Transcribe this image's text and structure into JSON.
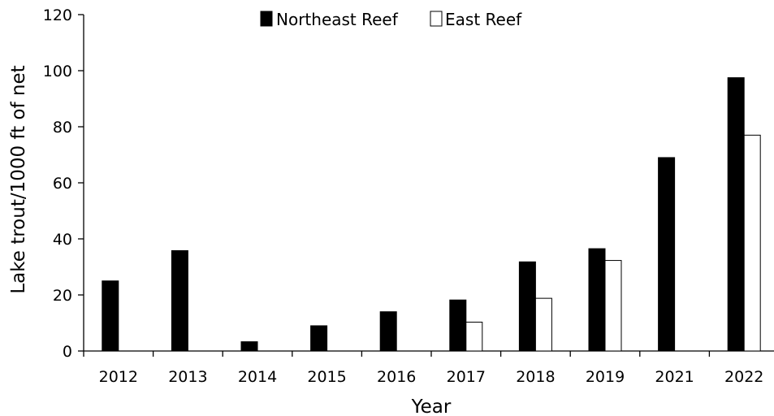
{
  "chart_data": {
    "type": "bar",
    "categories": [
      "2012",
      "2013",
      "2014",
      "2015",
      "2016",
      "2017",
      "2018",
      "2019",
      "2021",
      "2022"
    ],
    "series": [
      {
        "name": "Northeast Reef",
        "color": "#000000",
        "values": [
          25,
          35.8,
          3.3,
          9,
          14,
          18.2,
          31.8,
          36.5,
          69,
          97.5
        ]
      },
      {
        "name": "East Reef",
        "color": "#ffffff",
        "values": [
          null,
          null,
          null,
          null,
          null,
          10.3,
          18.8,
          32.3,
          null,
          77
        ]
      }
    ],
    "xlabel": "Year",
    "ylabel": "Lake trout/1000 ft of net",
    "ylim": [
      0,
      120
    ],
    "yticks": [
      0,
      20,
      40,
      60,
      80,
      100,
      120
    ],
    "grid": false,
    "legend_position": "top-center"
  }
}
